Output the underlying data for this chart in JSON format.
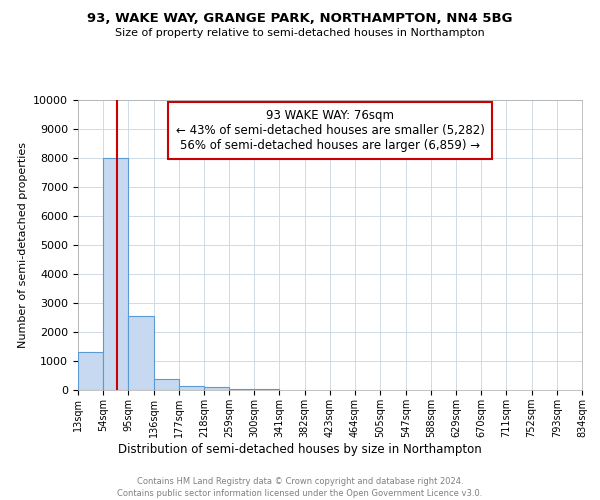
{
  "title1": "93, WAKE WAY, GRANGE PARK, NORTHAMPTON, NN4 5BG",
  "title2": "Size of property relative to semi-detached houses in Northampton",
  "xlabel": "Distribution of semi-detached houses by size in Northampton",
  "ylabel": "Number of semi-detached properties",
  "bin_labels": [
    "13sqm",
    "54sqm",
    "95sqm",
    "136sqm",
    "177sqm",
    "218sqm",
    "259sqm",
    "300sqm",
    "341sqm",
    "382sqm",
    "423sqm",
    "464sqm",
    "505sqm",
    "547sqm",
    "588sqm",
    "629sqm",
    "670sqm",
    "711sqm",
    "752sqm",
    "793sqm",
    "834sqm"
  ],
  "bin_edges": [
    13,
    54,
    95,
    136,
    177,
    218,
    259,
    300,
    341,
    382,
    423,
    464,
    505,
    547,
    588,
    629,
    670,
    711,
    752,
    793,
    834
  ],
  "bar_heights": [
    1320,
    8000,
    2550,
    375,
    150,
    100,
    50,
    50,
    0,
    0,
    0,
    0,
    0,
    0,
    0,
    0,
    0,
    0,
    0,
    0
  ],
  "bar_color": "#c6d9f0",
  "bar_edge_color": "#5b9bd5",
  "property_size": 76,
  "vline_color": "#cc0000",
  "annotation_text": "93 WAKE WAY: 76sqm\n← 43% of semi-detached houses are smaller (5,282)\n56% of semi-detached houses are larger (6,859) →",
  "annotation_box_color": "white",
  "annotation_box_edge": "#cc0000",
  "ylim": [
    0,
    10000
  ],
  "yticks": [
    0,
    1000,
    2000,
    3000,
    4000,
    5000,
    6000,
    7000,
    8000,
    9000,
    10000
  ],
  "footer1": "Contains HM Land Registry data © Crown copyright and database right 2024.",
  "footer2": "Contains public sector information licensed under the Open Government Licence v3.0.",
  "bg_color": "#ffffff",
  "grid_color": "#c8d4e0"
}
